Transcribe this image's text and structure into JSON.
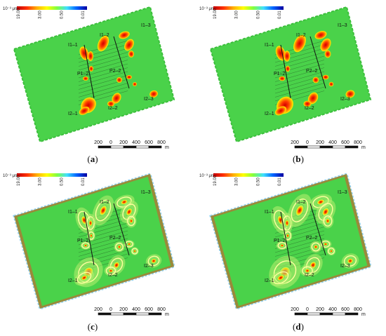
{
  "colorbar": {
    "unit": "10⁻³ μm²",
    "ticks": [
      "19.00",
      "3.00",
      "0.50",
      "0.01"
    ],
    "colors": [
      "#c00000",
      "#ff3000",
      "#ffb000",
      "#ffff00",
      "#80ff40",
      "#40e0ff",
      "#0060ff",
      "#0000a0"
    ]
  },
  "wells": [
    "I1–1",
    "I1–2",
    "I1–3",
    "P1–2",
    "P2–2",
    "I2–1",
    "I2–2",
    "I2–3"
  ],
  "scalebar": {
    "ticks": [
      "200",
      "0",
      "200",
      "400",
      "600",
      "800"
    ],
    "unit": "m"
  },
  "panels": [
    {
      "caption_open": "(",
      "caption_letter": "a",
      "caption_close": ")"
    },
    {
      "caption_open": "(",
      "caption_letter": "b",
      "caption_close": ")"
    },
    {
      "caption_open": "(",
      "caption_letter": "c",
      "caption_close": ")"
    },
    {
      "caption_open": "(",
      "caption_letter": "d",
      "caption_close": ")"
    }
  ],
  "colors": {
    "field_green": "#4ad24a",
    "background": "#ffffff"
  }
}
